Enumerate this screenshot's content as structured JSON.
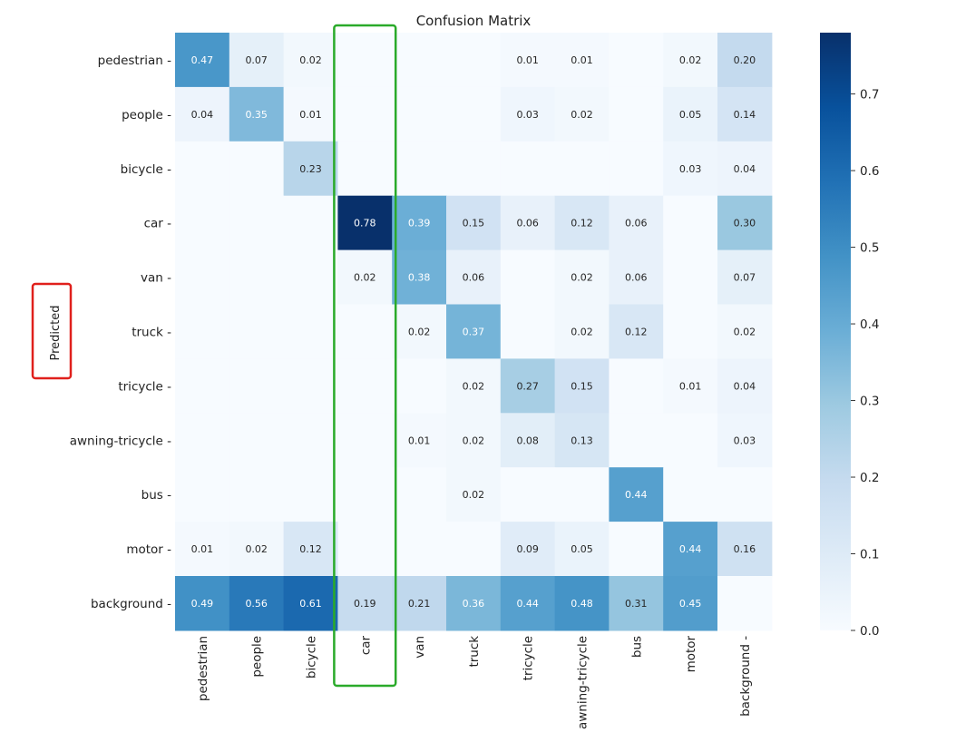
{
  "chart_data": {
    "type": "heatmap",
    "title": "Confusion Matrix",
    "ylabel": "Predicted",
    "xlabel": "",
    "x_categories": [
      "pedestrian",
      "people",
      "bicycle",
      "car",
      "van",
      "truck",
      "tricycle",
      "awning-tricycle",
      "bus",
      "motor",
      "background"
    ],
    "y_categories": [
      "pedestrian",
      "people",
      "bicycle",
      "car",
      "van",
      "truck",
      "tricycle",
      "awning-tricycle",
      "bus",
      "motor",
      "background"
    ],
    "values": [
      [
        0.47,
        0.07,
        0.02,
        null,
        null,
        null,
        0.01,
        0.01,
        null,
        0.02,
        0.2
      ],
      [
        0.04,
        0.35,
        0.01,
        null,
        null,
        null,
        0.03,
        0.02,
        null,
        0.05,
        0.14
      ],
      [
        null,
        null,
        0.23,
        null,
        null,
        null,
        null,
        null,
        null,
        0.03,
        0.04
      ],
      [
        null,
        null,
        null,
        0.78,
        0.39,
        0.15,
        0.06,
        0.12,
        0.06,
        null,
        0.3
      ],
      [
        null,
        null,
        null,
        0.02,
        0.38,
        0.06,
        null,
        0.02,
        0.06,
        null,
        0.07
      ],
      [
        null,
        null,
        null,
        null,
        0.02,
        0.37,
        null,
        0.02,
        0.12,
        null,
        0.02
      ],
      [
        null,
        null,
        null,
        null,
        null,
        0.02,
        0.27,
        0.15,
        null,
        0.01,
        0.04
      ],
      [
        null,
        null,
        null,
        null,
        0.01,
        0.02,
        0.08,
        0.13,
        null,
        null,
        0.03
      ],
      [
        null,
        null,
        null,
        null,
        null,
        0.02,
        null,
        null,
        0.44,
        null,
        null
      ],
      [
        0.01,
        0.02,
        0.12,
        null,
        null,
        null,
        0.09,
        0.05,
        null,
        0.44,
        0.16
      ],
      [
        0.49,
        0.56,
        0.61,
        0.19,
        0.21,
        0.36,
        0.44,
        0.48,
        0.31,
        0.45,
        null
      ]
    ],
    "colorbar": {
      "range": [
        0.0,
        0.78
      ],
      "ticks": [
        0.0,
        0.1,
        0.2,
        0.3,
        0.4,
        0.5,
        0.6,
        0.7
      ],
      "tick_labels": [
        "0.0",
        "0.1",
        "0.2",
        "0.3",
        "0.4",
        "0.5",
        "0.6",
        "0.7"
      ],
      "colormap": "Blues"
    },
    "highlights": [
      {
        "target": "column",
        "category": "car",
        "color": "#2aaa2a"
      },
      {
        "target": "ylabel",
        "color": "#e0201c"
      }
    ]
  }
}
